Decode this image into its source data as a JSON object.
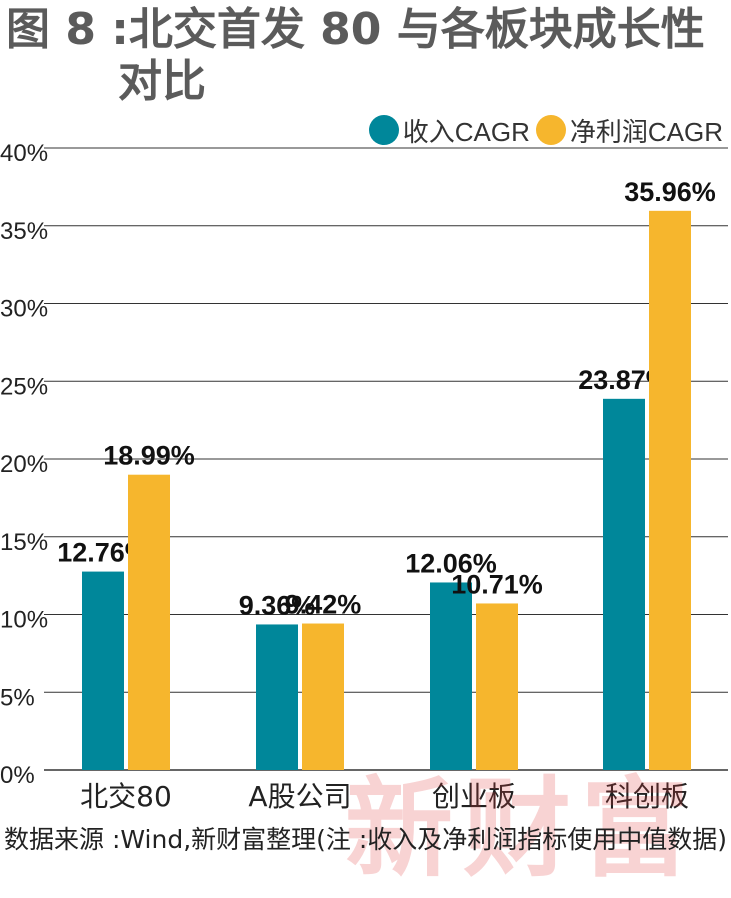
{
  "title": {
    "line1": "图 8 :北交首发 80 与各板块成长性",
    "line2": "对比"
  },
  "colors": {
    "revenue": "#00879a",
    "profit": "#f6b62d",
    "grid": "#333333",
    "text": "#222222"
  },
  "chart_data": {
    "type": "bar",
    "title": "图 8 :北交首发 80 与各板块成长性对比",
    "categories": [
      "北交80",
      "A股公司",
      "创业板",
      "科创板"
    ],
    "series": [
      {
        "name": "收入CAGR",
        "values": [
          12.76,
          9.36,
          12.06,
          23.87
        ],
        "labels": [
          "12.76%",
          "9.36%",
          "12.06%",
          "23.87%"
        ]
      },
      {
        "name": "净利润CAGR",
        "values": [
          18.99,
          9.42,
          10.71,
          35.96
        ],
        "labels": [
          "18.99%",
          "9.42%",
          "10.71%",
          "35.96%"
        ]
      }
    ],
    "ylim": [
      0,
      40
    ],
    "yticks": [
      "0%",
      "5%",
      "10%",
      "15%",
      "20%",
      "25%",
      "30%",
      "35%",
      "40%"
    ],
    "grid": true,
    "legend_position": "top-right",
    "xlabel": "",
    "ylabel": ""
  },
  "source": "数据来源 :Wind,新财富整理(注 :收入及净利润指标使用中值数据)",
  "watermark": "新财富"
}
